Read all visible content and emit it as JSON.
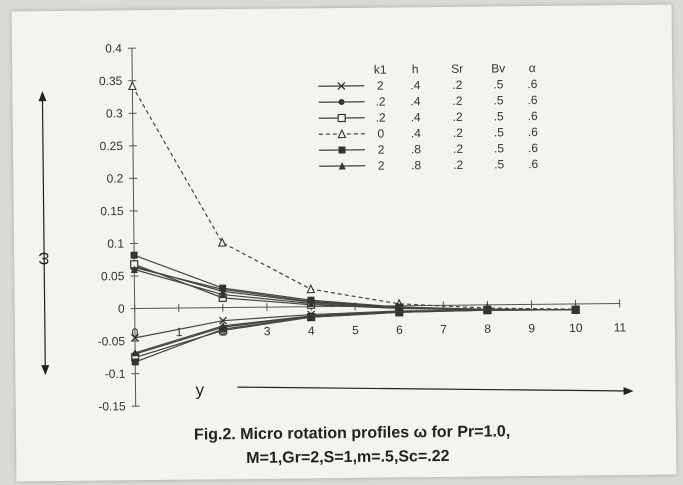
{
  "chart_data": {
    "type": "line",
    "title": "",
    "caption_line1": "Fig.2. Micro rotation profiles ω  for Pr=1.0,",
    "caption_line2": "M=1,Gr=2,S=1,m=.5,Sc=.22",
    "xlabel": "y",
    "ylabel": "ω",
    "xlim": [
      0,
      11
    ],
    "ylim": [
      -0.15,
      0.4
    ],
    "xticks": [
      "0",
      "1",
      "2",
      "3",
      "4",
      "5",
      "6",
      "7",
      "8",
      "9",
      "10",
      "11"
    ],
    "yticks": [
      "0.4",
      "0.35",
      "0.3",
      "0.25",
      "0.2",
      "0.15",
      "0.1",
      "0.05",
      "0",
      "-0.05",
      "-0.1",
      "-0.15"
    ],
    "grid": false,
    "legend_placement": "top-right",
    "legend_headers": [
      "k1",
      "h",
      "Sr",
      "Bv",
      "α"
    ],
    "series": [
      {
        "params": [
          "2",
          ".4",
          ".2",
          ".5",
          ".6"
        ],
        "marker": "x",
        "style": "solid",
        "x": [
          0,
          2,
          4,
          6,
          8,
          10
        ],
        "y": [
          0.065,
          0.025,
          0.007,
          -0.003,
          -0.007,
          -0.009
        ],
        "x2": [
          0,
          2,
          4,
          6,
          8,
          10
        ],
        "y2": [
          -0.045,
          -0.02,
          -0.012,
          -0.008,
          -0.008,
          -0.009
        ]
      },
      {
        "params": [
          ".2",
          ".4",
          ".2",
          ".5",
          ".6"
        ],
        "marker": "dot",
        "style": "solid",
        "x": [
          0,
          2,
          4,
          6,
          8,
          10
        ],
        "y": [
          0.063,
          0.028,
          0.008,
          -0.002,
          -0.007,
          -0.009
        ],
        "x2": [
          0,
          2,
          4,
          6,
          8,
          10
        ],
        "y2": [
          -0.07,
          -0.03,
          -0.015,
          -0.009,
          -0.008,
          -0.009
        ]
      },
      {
        "params": [
          ".2",
          ".4",
          ".2",
          ".5",
          ".6"
        ],
        "marker": "square-open",
        "style": "solid",
        "x": [
          0,
          2,
          4,
          6,
          8,
          10
        ],
        "y": [
          0.068,
          0.015,
          0.003,
          -0.004,
          -0.008,
          -0.009
        ],
        "x2": [
          0,
          2,
          4,
          6,
          8,
          10
        ],
        "y2": [
          -0.075,
          -0.035,
          -0.016,
          -0.01,
          -0.008,
          -0.009
        ]
      },
      {
        "params": [
          "0",
          ".4",
          ".2",
          ".5",
          ".6"
        ],
        "marker": "triangle-open",
        "style": "dashed",
        "x": [
          0,
          2,
          4,
          6,
          8,
          10
        ],
        "y": [
          0.342,
          0.1,
          0.027,
          0.003,
          -0.005,
          -0.008
        ]
      },
      {
        "params": [
          "2",
          ".8",
          ".2",
          ".5",
          ".6"
        ],
        "marker": "square-filled",
        "style": "solid",
        "x": [
          0,
          2,
          4,
          6,
          8,
          10
        ],
        "y": [
          0.082,
          0.03,
          0.01,
          -0.002,
          -0.007,
          -0.009
        ],
        "x2": [
          0,
          2,
          4,
          6,
          8,
          10
        ],
        "y2": [
          -0.082,
          -0.033,
          -0.016,
          -0.01,
          -0.008,
          -0.009
        ]
      },
      {
        "params": [
          "2",
          ".8",
          ".2",
          ".5",
          ".6"
        ],
        "marker": "triangle-filled",
        "style": "solid",
        "x": [
          0,
          2,
          4,
          6,
          8,
          10
        ],
        "y": [
          0.06,
          0.02,
          0.005,
          -0.003,
          -0.007,
          -0.009
        ],
        "x2": [
          0,
          2,
          4,
          6,
          8,
          10
        ],
        "y2": [
          -0.068,
          -0.028,
          -0.014,
          -0.009,
          -0.008,
          -0.009
        ]
      }
    ]
  }
}
